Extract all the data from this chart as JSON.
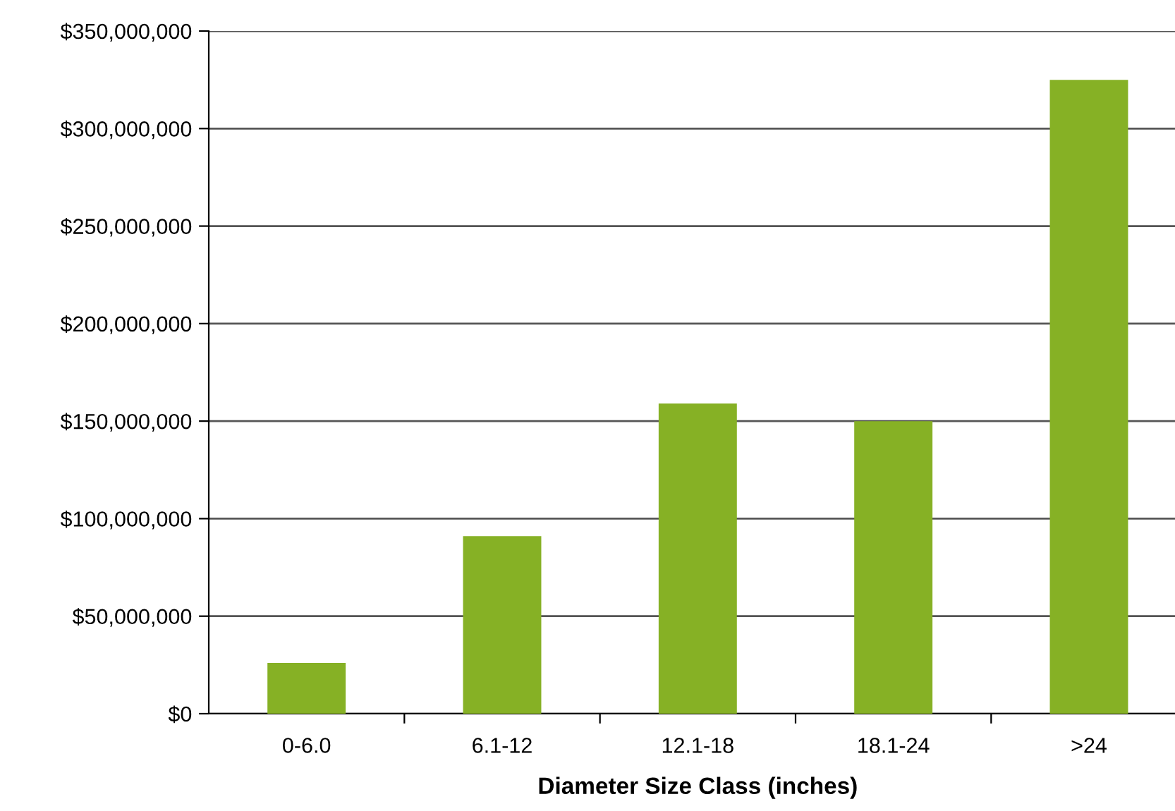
{
  "chart_data": {
    "type": "bar",
    "xlabel": "Diameter Size Class (inches)",
    "categories": [
      "0-6.0",
      "6.1-12",
      "12.1-18",
      "18.1-24",
      ">24"
    ],
    "values": [
      26000000,
      91000000,
      159000000,
      150000000,
      325000000
    ],
    "color": "#86b125",
    "ylim": [
      0,
      350000000
    ],
    "yticks": [
      {
        "value": 0,
        "label": "$0"
      },
      {
        "value": 50000000,
        "label": "$50,000,000"
      },
      {
        "value": 100000000,
        "label": "$100,000,000"
      },
      {
        "value": 150000000,
        "label": "$150,000,000"
      },
      {
        "value": 200000000,
        "label": "$200,000,000"
      },
      {
        "value": 250000000,
        "label": "$250,000,000"
      },
      {
        "value": 300000000,
        "label": "$300,000,000"
      },
      {
        "value": 350000000,
        "label": "$350,000,000"
      }
    ],
    "grid": "y"
  }
}
